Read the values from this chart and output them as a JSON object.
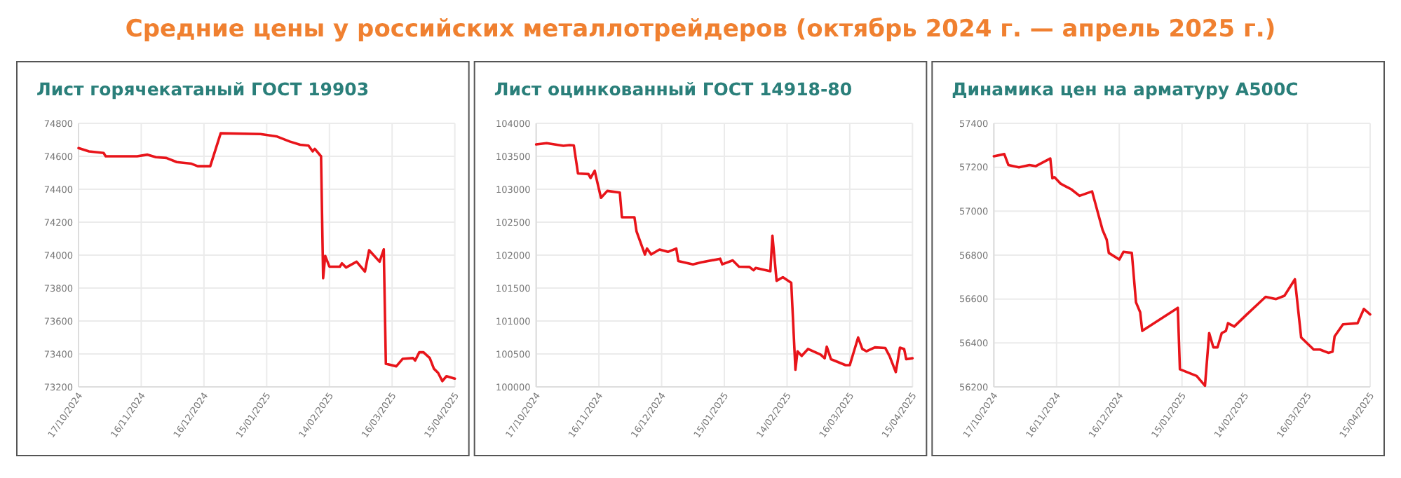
{
  "chart_data": [
    {
      "type": "other",
      "title": "Средние цены у российских металлотрейдеров (октябрь 2024 г. — апрель 2025 г.)"
    },
    {
      "type": "line",
      "title": "Лист горячекатаный ГОСТ 19903",
      "grid": true,
      "marker": "none",
      "line_style": "solid",
      "xlim": [
        "2024-10-17",
        "2025-04-15"
      ],
      "xticks": [
        {
          "value": "2024-10-17",
          "label": "17/10/2024"
        },
        {
          "value": "2024-11-16",
          "label": "16/11/2024"
        },
        {
          "value": "2024-12-16",
          "label": "16/12/2024"
        },
        {
          "value": "2025-01-15",
          "label": "15/01/2025"
        },
        {
          "value": "2025-02-14",
          "label": "14/02/2025"
        },
        {
          "value": "2025-03-16",
          "label": "16/03/2025"
        },
        {
          "value": "2025-04-15",
          "label": "15/04/2025"
        }
      ],
      "ylim": [
        73200,
        74800
      ],
      "yticks": [
        73200,
        73400,
        73600,
        73800,
        74000,
        74200,
        74400,
        74600,
        74800
      ],
      "x": [
        "2024-10-17",
        "2024-10-22",
        "2024-10-29",
        "2024-10-30",
        "2024-11-14",
        "2024-11-19",
        "2024-11-23",
        "2024-11-28",
        "2024-12-03",
        "2024-12-10",
        "2024-12-13",
        "2024-12-19",
        "2024-12-24",
        "2025-01-12",
        "2025-01-20",
        "2025-01-26",
        "2025-01-31",
        "2025-02-04",
        "2025-02-06",
        "2025-02-07",
        "2025-02-10",
        "2025-02-11",
        "2025-02-12",
        "2025-02-14",
        "2025-02-19",
        "2025-02-20",
        "2025-02-22",
        "2025-02-27",
        "2025-03-03",
        "2025-03-05",
        "2025-03-10",
        "2025-03-12",
        "2025-03-13",
        "2025-03-18",
        "2025-03-21",
        "2025-03-26",
        "2025-03-27",
        "2025-03-29",
        "2025-03-31",
        "2025-04-03",
        "2025-04-05",
        "2025-04-07",
        "2025-04-09",
        "2025-04-11",
        "2025-04-15"
      ],
      "series": [
        {
          "color": "#e8141a",
          "values": [
            74650,
            74630,
            74620,
            74600,
            74600,
            74610,
            74595,
            74590,
            74565,
            74555,
            74540,
            74540,
            74740,
            74735,
            74720,
            74690,
            74670,
            74665,
            74630,
            74645,
            74600,
            73860,
            73995,
            73930,
            73930,
            73950,
            73925,
            73960,
            73900,
            74030,
            73960,
            74035,
            73340,
            73325,
            73370,
            73375,
            73360,
            73410,
            73410,
            73375,
            73310,
            73285,
            73235,
            73265,
            73250
          ]
        }
      ]
    },
    {
      "type": "line",
      "title": "Лист оцинкованный ГОСТ 14918-80",
      "grid": true,
      "marker": "none",
      "line_style": "solid",
      "xlim": [
        "2024-10-17",
        "2025-04-15"
      ],
      "xticks": [
        {
          "value": "2024-10-17",
          "label": "17/10/2024"
        },
        {
          "value": "2024-11-16",
          "label": "16/11/2024"
        },
        {
          "value": "2024-12-16",
          "label": "16/12/2024"
        },
        {
          "value": "2025-01-15",
          "label": "15/01/2025"
        },
        {
          "value": "2025-02-14",
          "label": "14/02/2025"
        },
        {
          "value": "2025-03-16",
          "label": "16/03/2025"
        },
        {
          "value": "2025-04-15",
          "label": "15/04/2025"
        }
      ],
      "ylim": [
        100000,
        104000
      ],
      "yticks": [
        100000,
        100500,
        101000,
        101500,
        102000,
        102500,
        103000,
        103500,
        104000
      ],
      "x": [
        "2024-10-17",
        "2024-10-22",
        "2024-10-30",
        "2024-11-02",
        "2024-11-04",
        "2024-11-06",
        "2024-11-11",
        "2024-11-12",
        "2024-11-14",
        "2024-11-15",
        "2024-11-17",
        "2024-11-20",
        "2024-11-26",
        "2024-11-27",
        "2024-12-03",
        "2024-12-04",
        "2024-12-08",
        "2024-12-09",
        "2024-12-11",
        "2024-12-15",
        "2024-12-19",
        "2024-12-23",
        "2024-12-24",
        "2024-12-31",
        "2025-01-04",
        "2025-01-13",
        "2025-01-14",
        "2025-01-19",
        "2025-01-22",
        "2025-01-27",
        "2025-01-29",
        "2025-01-30",
        "2025-02-06",
        "2025-02-07",
        "2025-02-09",
        "2025-02-12",
        "2025-02-16",
        "2025-02-18",
        "2025-02-19",
        "2025-02-21",
        "2025-02-24",
        "2025-03-02",
        "2025-03-04",
        "2025-03-05",
        "2025-03-07",
        "2025-03-14",
        "2025-03-16",
        "2025-03-20",
        "2025-03-22",
        "2025-03-24",
        "2025-03-28",
        "2025-04-02",
        "2025-04-04",
        "2025-04-07",
        "2025-04-09",
        "2025-04-11",
        "2025-04-12",
        "2025-04-15"
      ],
      "series": [
        {
          "color": "#e8141a",
          "values": [
            103680,
            103700,
            103660,
            103670,
            103665,
            103240,
            103230,
            103170,
            103280,
            103140,
            102870,
            102975,
            102950,
            102575,
            102575,
            102360,
            102010,
            102100,
            102010,
            102085,
            102050,
            102100,
            101910,
            101860,
            101890,
            101945,
            101860,
            101920,
            101825,
            101820,
            101770,
            101805,
            101755,
            102295,
            101610,
            101665,
            101580,
            100260,
            100540,
            100470,
            100575,
            100490,
            100435,
            100610,
            100420,
            100330,
            100330,
            100750,
            100575,
            100540,
            100600,
            100590,
            100470,
            100225,
            100595,
            100575,
            100420,
            100435
          ]
        }
      ]
    },
    {
      "type": "line",
      "title": "Динамика цен на арматуру А500С",
      "grid": true,
      "marker": "none",
      "line_style": "solid",
      "xlim": [
        "2024-10-17",
        "2025-04-15"
      ],
      "xticks": [
        {
          "value": "2024-10-17",
          "label": "17/10/2024"
        },
        {
          "value": "2024-11-16",
          "label": "16/11/2024"
        },
        {
          "value": "2024-12-16",
          "label": "16/12/2024"
        },
        {
          "value": "2025-01-15",
          "label": "15/01/2025"
        },
        {
          "value": "2025-02-14",
          "label": "14/02/2025"
        },
        {
          "value": "2025-03-16",
          "label": "16/03/2025"
        },
        {
          "value": "2025-04-15",
          "label": "15/04/2025"
        }
      ],
      "ylim": [
        56200,
        57400
      ],
      "yticks": [
        56200,
        56400,
        56600,
        56800,
        57000,
        57200,
        57400
      ],
      "x": [
        "2024-10-17",
        "2024-10-22",
        "2024-10-24",
        "2024-10-29",
        "2024-11-03",
        "2024-11-06",
        "2024-11-13",
        "2024-11-14",
        "2024-11-15",
        "2024-11-18",
        "2024-11-20",
        "2024-11-23",
        "2024-11-27",
        "2024-12-03",
        "2024-12-08",
        "2024-12-10",
        "2024-12-11",
        "2024-12-16",
        "2024-12-18",
        "2024-12-22",
        "2024-12-24",
        "2024-12-26",
        "2024-12-27",
        "2025-01-13",
        "2025-01-14",
        "2025-01-22",
        "2025-01-26",
        "2025-01-28",
        "2025-01-30",
        "2025-02-01",
        "2025-02-03",
        "2025-02-05",
        "2025-02-06",
        "2025-02-09",
        "2025-02-15",
        "2025-02-24",
        "2025-03-01",
        "2025-03-05",
        "2025-03-10",
        "2025-03-13",
        "2025-03-19",
        "2025-03-22",
        "2025-03-26",
        "2025-03-28",
        "2025-03-29",
        "2025-04-02",
        "2025-04-09",
        "2025-04-12",
        "2025-04-15"
      ],
      "series": [
        {
          "color": "#e8141a",
          "values": [
            57250,
            57260,
            57210,
            57200,
            57210,
            57205,
            57240,
            57150,
            57155,
            57125,
            57115,
            57100,
            57070,
            57090,
            56915,
            56870,
            56810,
            56780,
            56815,
            56810,
            56585,
            56540,
            56455,
            56560,
            56280,
            56250,
            56205,
            56445,
            56380,
            56380,
            56445,
            56455,
            56490,
            56475,
            56530,
            56610,
            56600,
            56615,
            56690,
            56425,
            56370,
            56370,
            56355,
            56360,
            56430,
            56485,
            56490,
            56555,
            56530
          ]
        }
      ]
    }
  ]
}
